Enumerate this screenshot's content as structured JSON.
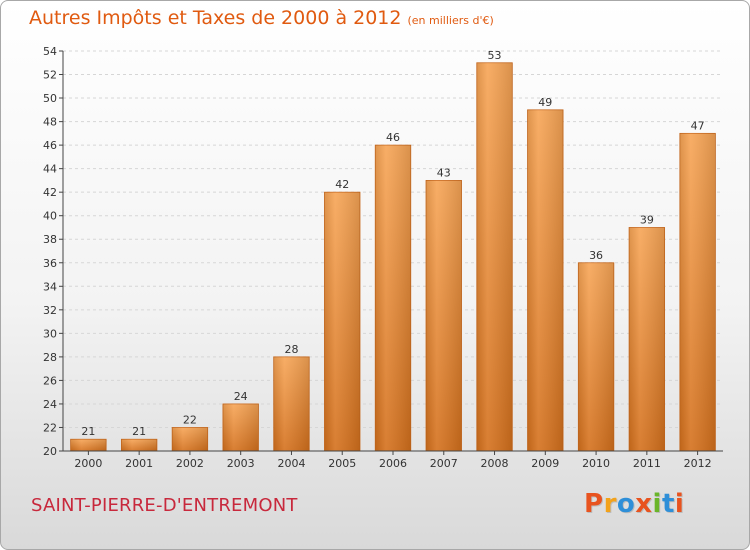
{
  "header": {
    "title": "Autres Impôts et Taxes de 2000 à 2012",
    "unit": "(en milliers d'€)"
  },
  "footer": {
    "place": "SAINT-PIERRE-D'ENTREMONT",
    "logo": [
      "P",
      "r",
      "o",
      "x",
      "i",
      "t",
      "i"
    ],
    "logo_colors": [
      "#e8531f",
      "#f3a21a",
      "#2e8fd8",
      "#e8531f",
      "#6ab52a",
      "#2e8fd8",
      "#e8531f"
    ]
  },
  "chart_data": {
    "type": "bar",
    "title": "Autres Impôts et Taxes de 2000 à 2012",
    "subtitle": "(en milliers d'€)",
    "categories": [
      "2000",
      "2001",
      "2002",
      "2003",
      "2004",
      "2005",
      "2006",
      "2007",
      "2008",
      "2009",
      "2010",
      "2011",
      "2012"
    ],
    "values": [
      21,
      21,
      22,
      24,
      28,
      42,
      46,
      43,
      53,
      49,
      36,
      39,
      47
    ],
    "ylim": [
      20,
      54
    ],
    "yticks": [
      20,
      22,
      24,
      26,
      28,
      30,
      32,
      34,
      36,
      38,
      40,
      42,
      44,
      46,
      48,
      50,
      52,
      54
    ],
    "grid": true,
    "bar_color": "#f0913a"
  }
}
